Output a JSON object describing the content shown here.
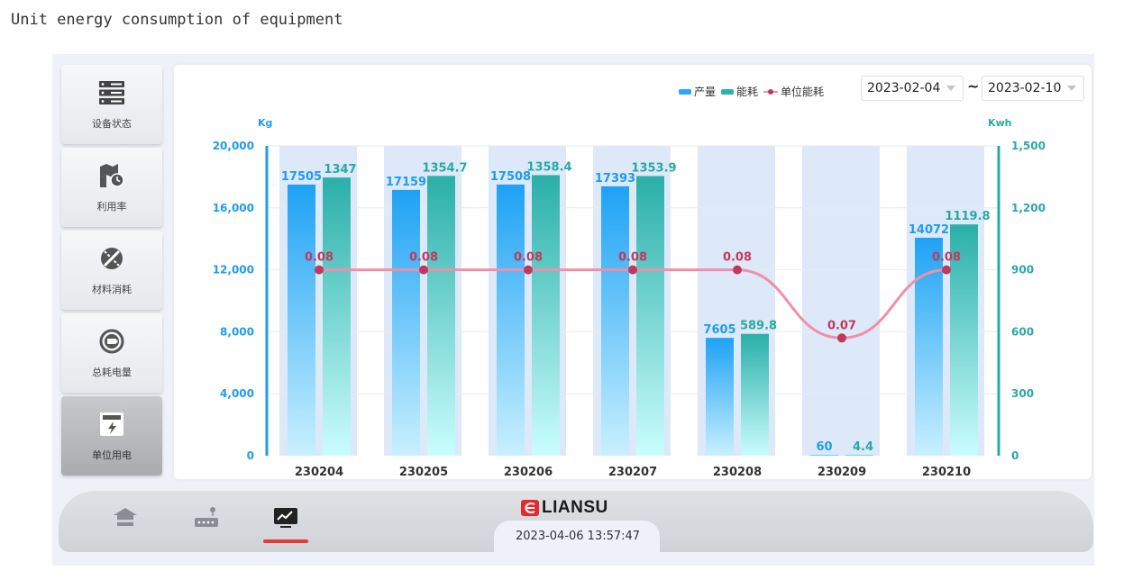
{
  "caption": "Unit energy consumption of equipment",
  "sidebar": {
    "items": [
      {
        "label": "设备状态",
        "icon": "server-rack-icon"
      },
      {
        "label": "利用率",
        "icon": "map-clock-icon"
      },
      {
        "label": "材料消耗",
        "icon": "tools-crossed-icon"
      },
      {
        "label": "总耗电量",
        "icon": "battery-circle-icon"
      },
      {
        "label": "单位用电",
        "icon": "power-meter-icon"
      }
    ],
    "active_index": 4
  },
  "date_range": {
    "start": "2023-02-04",
    "separator": "~",
    "end": "2023-02-10"
  },
  "legend": {
    "production": "产量",
    "energy": "能耗",
    "unit": "单位能耗"
  },
  "colors": {
    "production": "#2aa7f5",
    "energy": "#2fb1ab",
    "unit_line": "#f08fa8",
    "unit_dot": "#c0395d",
    "accent": "#e23c3c"
  },
  "chart_data": {
    "type": "bar",
    "categories": [
      "230204",
      "230205",
      "230206",
      "230207",
      "230208",
      "230209",
      "230210"
    ],
    "series": [
      {
        "name": "产量",
        "type": "bar",
        "axis": "left",
        "values": [
          17505,
          17159,
          17508,
          17393,
          7605,
          60,
          14072
        ]
      },
      {
        "name": "能耗",
        "type": "bar",
        "axis": "right",
        "values": [
          1347,
          1354.7,
          1358.4,
          1353.9,
          589.8,
          4.4,
          1119.8
        ]
      },
      {
        "name": "单位能耗",
        "type": "line",
        "axis": "left-scaled",
        "values": [
          0.08,
          0.08,
          0.08,
          0.08,
          0.08,
          0.07,
          0.08
        ]
      }
    ],
    "y_left": {
      "label": "Kg",
      "ticks": [
        "0",
        "4,000",
        "8,000",
        "12,000",
        "16,000",
        "20,000"
      ],
      "range": [
        0,
        20000
      ]
    },
    "y_right": {
      "label": "Kwh",
      "ticks": [
        "0",
        "300",
        "600",
        "900",
        "1,200",
        "1,500"
      ],
      "range": [
        0,
        1500
      ]
    },
    "grid": true,
    "legend_position": "top-right"
  },
  "footer": {
    "logo_text": "LIANSU",
    "datetime": "2023-04-06 13:57:47",
    "nav": [
      {
        "icon": "home-icon",
        "active": false
      },
      {
        "icon": "device-location-icon",
        "active": false
      },
      {
        "icon": "monitor-chart-icon",
        "active": true
      }
    ]
  }
}
